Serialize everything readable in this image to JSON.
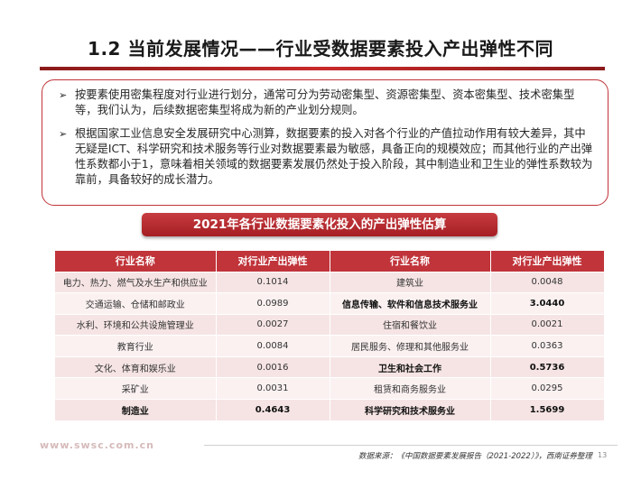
{
  "title": "1.2 当前发展情况——行业受数据要素投入产出弹性不同",
  "bullets": [
    {
      "mark": "➢",
      "text": "按要素使用密集程度对行业进行划分，通常可分为劳动密集型、资源密集型、资本密集型、技术密集型等，我们认为，后续数据密集型将成为新的产业划分规则。"
    },
    {
      "mark": "➢",
      "text": "根据国家工业信息安全发展研究中心测算，数据要素的投入对各个行业的产值拉动作用有较大差异，其中无疑是ICT、科学研究和技术服务等行业对数据要素最为敏感，具备正向的规模效应；而其他行业的产出弹性系数都小于1，意味着相关领域的数据要素发展仍然处于投入阶段，其中制造业和卫生业的弹性系数较为靠前，具备较好的成长潜力。"
    }
  ],
  "table": {
    "caption": "2021年各行业数据要素化投入的产出弹性估算",
    "headers": [
      "行业名称",
      "对行业产出弹性",
      "行业名称",
      "对行业产出弹性"
    ],
    "rows": [
      {
        "left_name": "电力、热力、燃气及水生产和供应业",
        "left_value": "0.1014",
        "right_name": "建筑业",
        "right_value": "0.0048"
      },
      {
        "left_name": "交通运输、仓储和邮政业",
        "left_value": "0.0989",
        "right_name": "信息传输、软件和信息技术服务业",
        "right_value": "3.0440"
      },
      {
        "left_name": "水利、环境和公共设施管理业",
        "left_value": "0.0027",
        "right_name": "住宿和餐饮业",
        "right_value": "0.0021"
      },
      {
        "left_name": "教育行业",
        "left_value": "0.0084",
        "right_name": "居民服务、修理和其他服务业",
        "right_value": "0.0363"
      },
      {
        "left_name": "文化、体育和娱乐业",
        "left_value": "0.0016",
        "right_name": "卫生和社会工作",
        "right_value": "0.5736"
      },
      {
        "left_name": "采矿业",
        "left_value": "0.0031",
        "right_name": "租赁和商务服务业",
        "right_value": "0.0295"
      },
      {
        "left_name": "制造业",
        "left_value": "0.4643",
        "right_name": "科学研究和技术服务业",
        "right_value": "1.5699"
      }
    ]
  },
  "watermark": "www.swsc.com.cn",
  "footer": {
    "source": "数据来源：《中国数据要素发展报告（2021-2022）》，西南证券整理",
    "page_number": "13"
  },
  "colors": {
    "accent": "#c0343a",
    "row_odd": "#f6e4e4",
    "row_even": "#fbf1f1"
  }
}
